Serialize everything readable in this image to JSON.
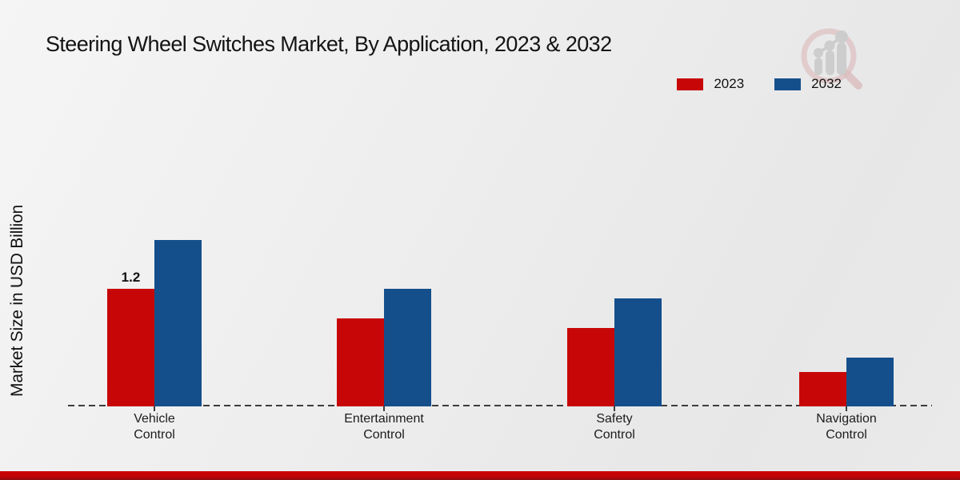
{
  "title": "Steering Wheel Switches Market, By Application, 2023 & 2032",
  "ylabel": "Market Size in USD Billion",
  "legend": [
    {
      "label": "2023",
      "color": "#c70707"
    },
    {
      "label": "2032",
      "color": "#154f8b"
    }
  ],
  "watermark": "market-research-future-logo",
  "chart_data": {
    "type": "bar",
    "title": "Steering Wheel Switches Market, By Application, 2023 & 2032",
    "xlabel": "",
    "ylabel": "Market Size in USD Billion",
    "categories": [
      "Vehicle Control",
      "Entertainment Control",
      "Safety Control",
      "Navigation Control"
    ],
    "series": [
      {
        "name": "2023",
        "color": "#c70707",
        "values": [
          1.2,
          0.9,
          0.8,
          0.35
        ]
      },
      {
        "name": "2032",
        "color": "#154f8b",
        "values": [
          1.7,
          1.2,
          1.1,
          0.5
        ]
      }
    ],
    "bar_labels": [
      {
        "series": "2023",
        "category": "Vehicle Control",
        "text": "1.2"
      }
    ],
    "ylim": [
      0,
      2
    ],
    "grid": false,
    "y_axis_ticks_visible": false,
    "baseline_style": "dashed",
    "legend_position": "top-right"
  }
}
